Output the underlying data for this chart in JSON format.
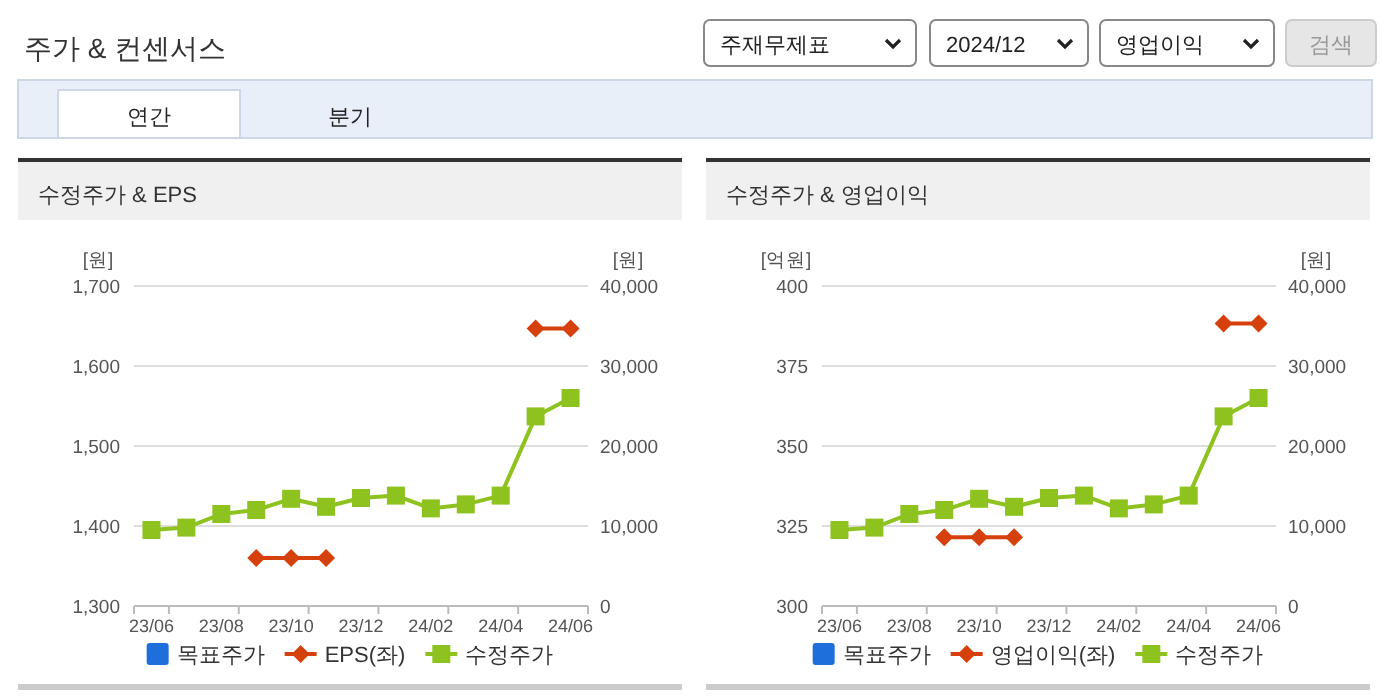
{
  "chart_data": [
    {
      "type": "other",
      "annotations": [
        "주가 & 컨센서스",
        "주재무제표",
        "2024/12",
        "영업이익",
        "검색",
        "연간",
        "분기"
      ]
    },
    {
      "type": "line",
      "title": "수정주가 & EPS",
      "ylabel": "[원]",
      "y2label": "[원]",
      "categories": [
        "23/06",
        null,
        "23/08",
        null,
        "23/10",
        null,
        "23/12",
        null,
        "24/02",
        null,
        "24/04",
        null,
        "24/06"
      ],
      "ylim": [
        1300,
        1700
      ],
      "yticks": [
        {
          "value": 1300,
          "label": "1,300"
        },
        {
          "value": 1400,
          "label": "1,400"
        },
        {
          "value": 1500,
          "label": "1,500"
        },
        {
          "value": 1600,
          "label": "1,600"
        },
        {
          "value": 1700,
          "label": "1,700"
        }
      ],
      "y2lim": [
        0,
        40000
      ],
      "y2ticks": [
        0,
        {
          "value": 10000,
          "label": "10,000"
        },
        {
          "value": 20000,
          "label": "20,000"
        },
        {
          "value": 30000,
          "label": "30,000"
        },
        {
          "value": 40000,
          "label": "40,000"
        }
      ],
      "grid": "y",
      "legend": "bottom",
      "series": [
        {
          "name": "목표주가",
          "type": "scatter",
          "marker": "square",
          "color": "#1e6fdc",
          "values": [
            null,
            null,
            null,
            null,
            null,
            null,
            null,
            null,
            null,
            null,
            null,
            null,
            null
          ]
        },
        {
          "name": "EPS(좌)",
          "marker": "diamond",
          "color": "#d6400c",
          "values": [
            null,
            null,
            null,
            1360,
            1360,
            1360,
            null,
            null,
            null,
            null,
            null,
            1647,
            1647
          ]
        },
        {
          "name": "수정주가",
          "marker": "square",
          "axis": "y2",
          "color": "#8dc21f",
          "values": [
            9500,
            9800,
            11500,
            12000,
            13400,
            12400,
            13500,
            13800,
            12200,
            12700,
            13800,
            23700,
            26000
          ]
        }
      ]
    },
    {
      "type": "line",
      "title": "수정주가 & 영업이익",
      "ylabel": "[억원]",
      "y2label": "[원]",
      "categories": [
        "23/06",
        null,
        "23/08",
        null,
        "23/10",
        null,
        "23/12",
        null,
        "24/02",
        null,
        "24/04",
        null,
        "24/06"
      ],
      "ylim": [
        300,
        400
      ],
      "yticks": [
        300,
        325,
        350,
        375,
        400
      ],
      "y2lim": [
        0,
        40000
      ],
      "y2ticks": [
        0,
        {
          "value": 10000,
          "label": "10,000"
        },
        {
          "value": 20000,
          "label": "20,000"
        },
        {
          "value": 30000,
          "label": "30,000"
        },
        {
          "value": 40000,
          "label": "40,000"
        }
      ],
      "grid": "y",
      "legend": "bottom",
      "series": [
        {
          "name": "목표주가",
          "type": "scatter",
          "marker": "square",
          "color": "#1e6fdc",
          "values": [
            null,
            null,
            null,
            null,
            null,
            null,
            null,
            null,
            null,
            null,
            null,
            null,
            null
          ]
        },
        {
          "name": "영업이익(좌)",
          "marker": "diamond",
          "color": "#d6400c",
          "values": [
            null,
            null,
            null,
            321.5,
            321.5,
            321.5,
            null,
            null,
            null,
            null,
            null,
            388.3,
            388.3
          ]
        },
        {
          "name": "수정주가",
          "marker": "square",
          "axis": "y2",
          "color": "#8dc21f",
          "values": [
            9500,
            9800,
            11500,
            12000,
            13400,
            12400,
            13500,
            13800,
            12200,
            12700,
            13800,
            23700,
            26000
          ]
        }
      ]
    }
  ]
}
